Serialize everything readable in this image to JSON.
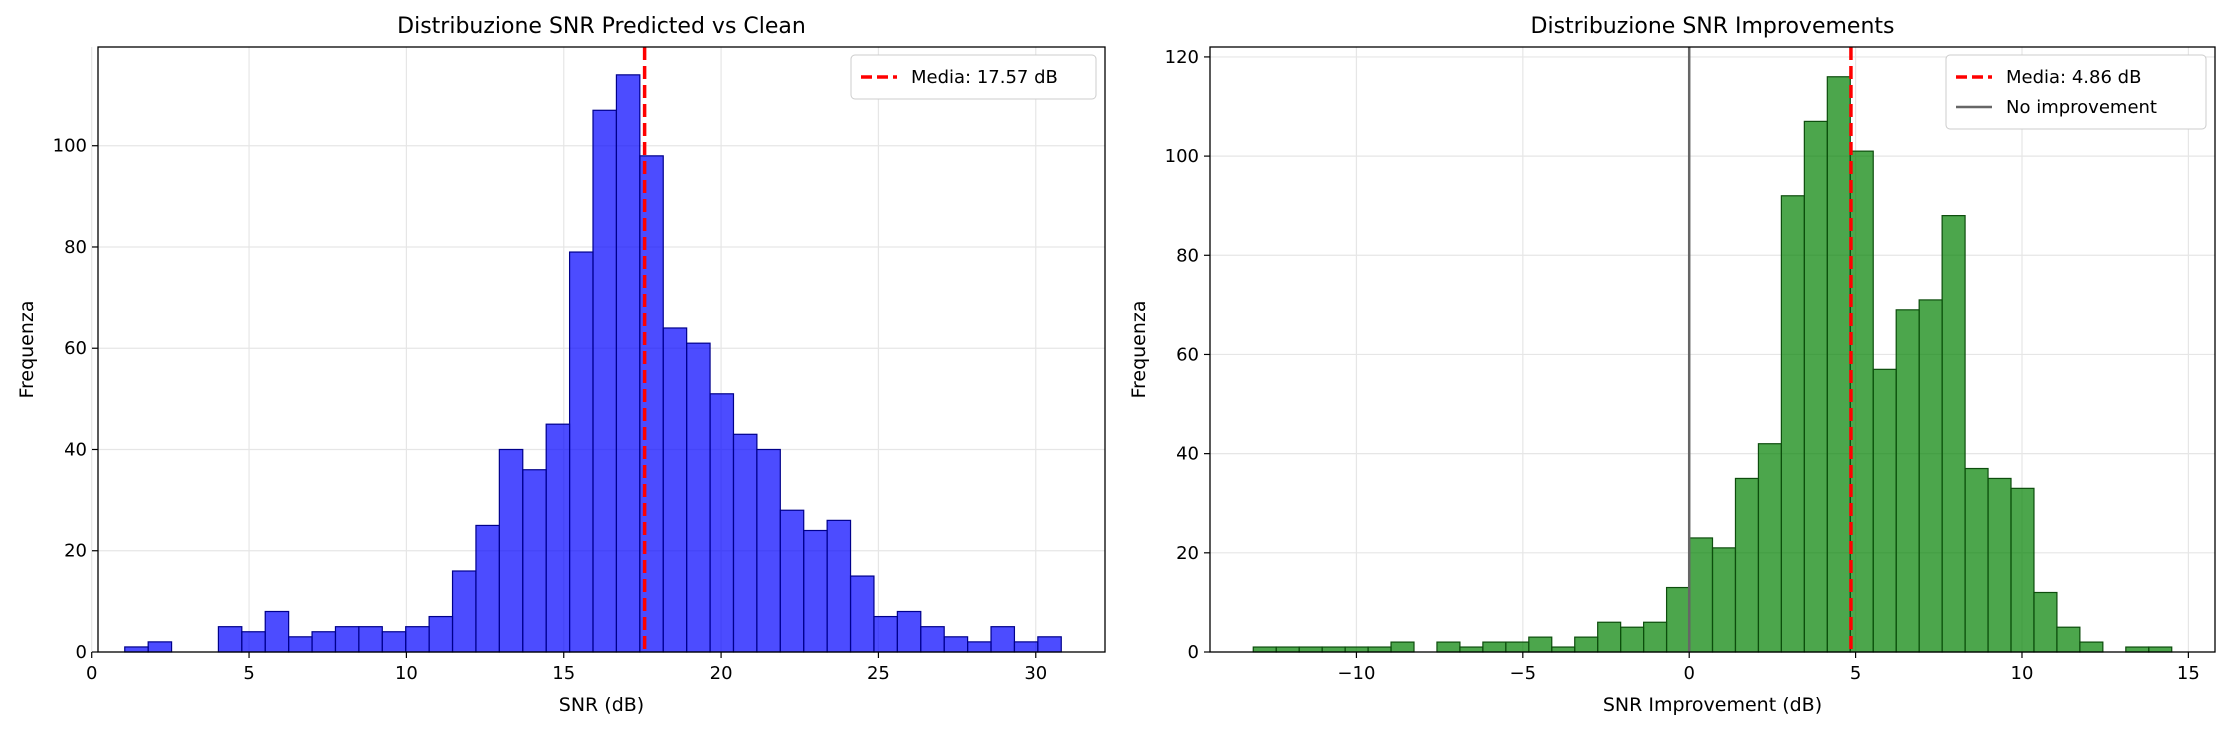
{
  "chart_data": [
    {
      "type": "bar",
      "title": "Distribuzione SNR Predicted vs Clean",
      "xlabel": "SNR (dB)",
      "ylabel": "Frequenza",
      "xlim": [
        0.2,
        32.2
      ],
      "ylim": [
        0,
        119.5
      ],
      "xticks": [
        0,
        5,
        10,
        15,
        20,
        25,
        30
      ],
      "yticks": [
        0,
        20,
        40,
        60,
        80,
        100
      ],
      "grid": true,
      "legend_position": "top-right",
      "bar_color": "#0000ff",
      "bin_edges_start": 1.05,
      "bin_width": 0.744,
      "values": [
        1,
        2,
        0,
        0,
        5,
        4,
        8,
        3,
        4,
        5,
        5,
        4,
        5,
        7,
        16,
        25,
        40,
        36,
        45,
        79,
        107,
        114,
        98,
        64,
        61,
        51,
        43,
        40,
        28,
        24,
        26,
        15,
        7,
        8,
        5,
        3,
        2,
        5,
        2,
        3
      ],
      "vlines": [
        {
          "x": 17.57,
          "color": "#ff0000",
          "style": "dashed",
          "label": "Media: 17.57 dB"
        }
      ]
    },
    {
      "type": "bar",
      "title": "Distribuzione SNR Improvements",
      "xlabel": "SNR Improvement (dB)",
      "ylabel": "Frequenza",
      "xlim": [
        -14.4,
        15.8
      ],
      "ylim": [
        0,
        122
      ],
      "xticks": [
        -10,
        -5,
        0,
        5,
        10,
        15
      ],
      "xtick_labels": [
        "−10",
        "−5",
        "0",
        "5",
        "10",
        "15"
      ],
      "yticks": [
        0,
        20,
        40,
        60,
        80,
        100,
        120
      ],
      "grid": true,
      "legend_position": "top-right",
      "bar_color": "#008000",
      "bin_edges_start": -13.1,
      "bin_width": 0.69,
      "values": [
        1,
        1,
        1,
        1,
        1,
        1,
        2,
        0,
        2,
        1,
        2,
        2,
        3,
        1,
        3,
        6,
        5,
        6,
        13,
        23,
        21,
        35,
        42,
        92,
        107,
        116,
        101,
        57,
        69,
        71,
        88,
        37,
        35,
        33,
        12,
        5,
        2,
        0,
        1,
        1
      ],
      "vlines": [
        {
          "x": 4.86,
          "color": "#ff0000",
          "style": "dashed",
          "label": "Media: 4.86 dB"
        },
        {
          "x": 0,
          "color": "#666666",
          "style": "solid",
          "label": "No improvement"
        }
      ]
    }
  ]
}
